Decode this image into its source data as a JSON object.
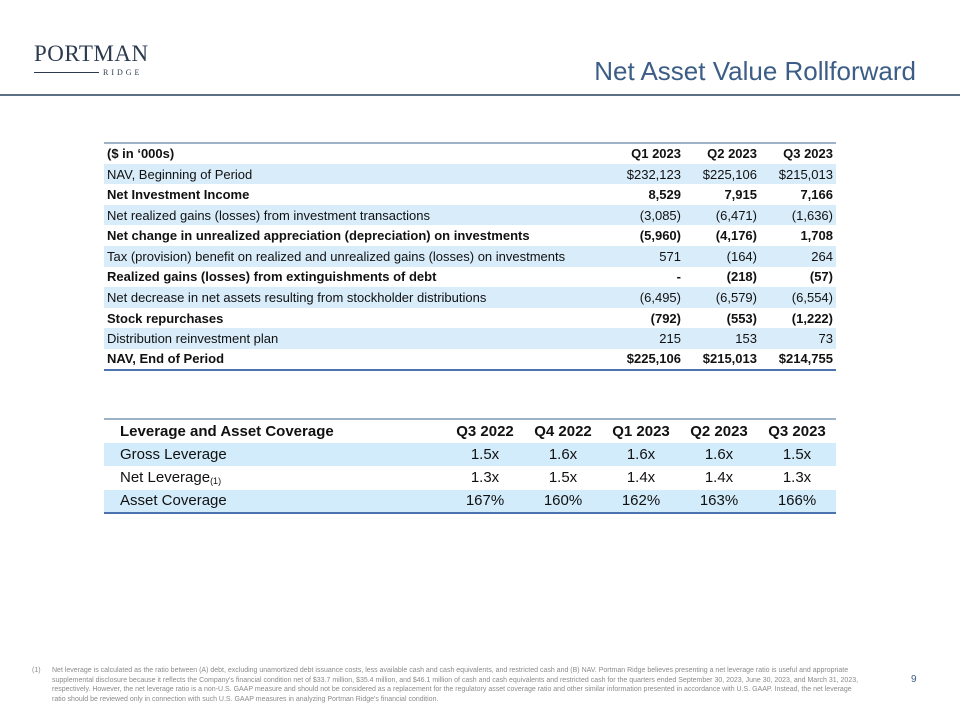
{
  "logo": {
    "name": "PORTMAN",
    "sub": "RIDGE"
  },
  "title": "Net Asset Value Rollforward",
  "nav_table": {
    "headers": [
      "($ in ‘000s)",
      "Q1 2023",
      "Q2 2023",
      "Q3 2023"
    ],
    "rows": [
      {
        "label": "NAV, Beginning of Period",
        "values": [
          "$232,123",
          "$225,106",
          "$215,013"
        ]
      },
      {
        "label": "Net Investment Income",
        "values": [
          "8,529",
          "7,915",
          "7,166"
        ]
      },
      {
        "label": "Net realized gains (losses) from investment transactions",
        "values": [
          "(3,085)",
          "(6,471)",
          "(1,636)"
        ]
      },
      {
        "label": "Net change in unrealized appreciation (depreciation) on investments",
        "values": [
          "(5,960)",
          "(4,176)",
          "1,708"
        ]
      },
      {
        "label": "Tax (provision) benefit on realized and unrealized gains (losses) on investments",
        "values": [
          "571",
          "(164)",
          "264"
        ]
      },
      {
        "label": "Realized gains (losses) from extinguishments of debt",
        "values": [
          "-",
          "(218)",
          "(57)"
        ]
      },
      {
        "label": "Net decrease in net assets resulting from stockholder distributions",
        "values": [
          "(6,495)",
          "(6,579)",
          "(6,554)"
        ]
      },
      {
        "label": "Stock repurchases",
        "values": [
          "(792)",
          "(553)",
          "(1,222)"
        ]
      },
      {
        "label": "Distribution reinvestment plan",
        "values": [
          "215",
          "153",
          "73"
        ]
      },
      {
        "label": "NAV, End of Period",
        "values": [
          "$225,106",
          "$215,013",
          "$214,755"
        ]
      }
    ]
  },
  "leverage_table": {
    "headers": [
      "Leverage and Asset Coverage",
      "Q3 2022",
      "Q4 2022",
      "Q1 2023",
      "Q2 2023",
      "Q3 2023"
    ],
    "rows": [
      {
        "label": "Gross Leverage",
        "note": "",
        "values": [
          "1.5x",
          "1.6x",
          "1.6x",
          "1.6x",
          "1.5x"
        ]
      },
      {
        "label": "Net Leverage",
        "note": "(1)",
        "values": [
          "1.3x",
          "1.5x",
          "1.4x",
          "1.4x",
          "1.3x"
        ]
      },
      {
        "label": "Asset Coverage",
        "note": "",
        "values": [
          "167%",
          "160%",
          "162%",
          "163%",
          "166%"
        ]
      }
    ]
  },
  "footnote": {
    "marker": "(1)",
    "text": "Net leverage is calculated as the ratio between (A) debt, excluding unamortized debt issuance costs, less available cash and cash equivalents, and restricted cash and (B) NAV. Portman Ridge believes presenting a net leverage ratio is useful and appropriate supplemental disclosure because it reflects the Company's financial condition net of $33.7 million, $35.4 million, and $46.1 million of cash and cash equivalents and restricted cash for the quarters ended September 30, 2023, June 30, 2023, and March 31, 2023, respectively. However, the net leverage ratio is a non-U.S. GAAP measure and should not be considered as a replacement for the regulatory asset coverage ratio and other similar information presented in accordance with U.S. GAAP. Instead, the net leverage ratio should be reviewed only in connection with such U.S. GAAP measures in analyzing Portman Ridge's financial condition."
  },
  "page_number": "9"
}
